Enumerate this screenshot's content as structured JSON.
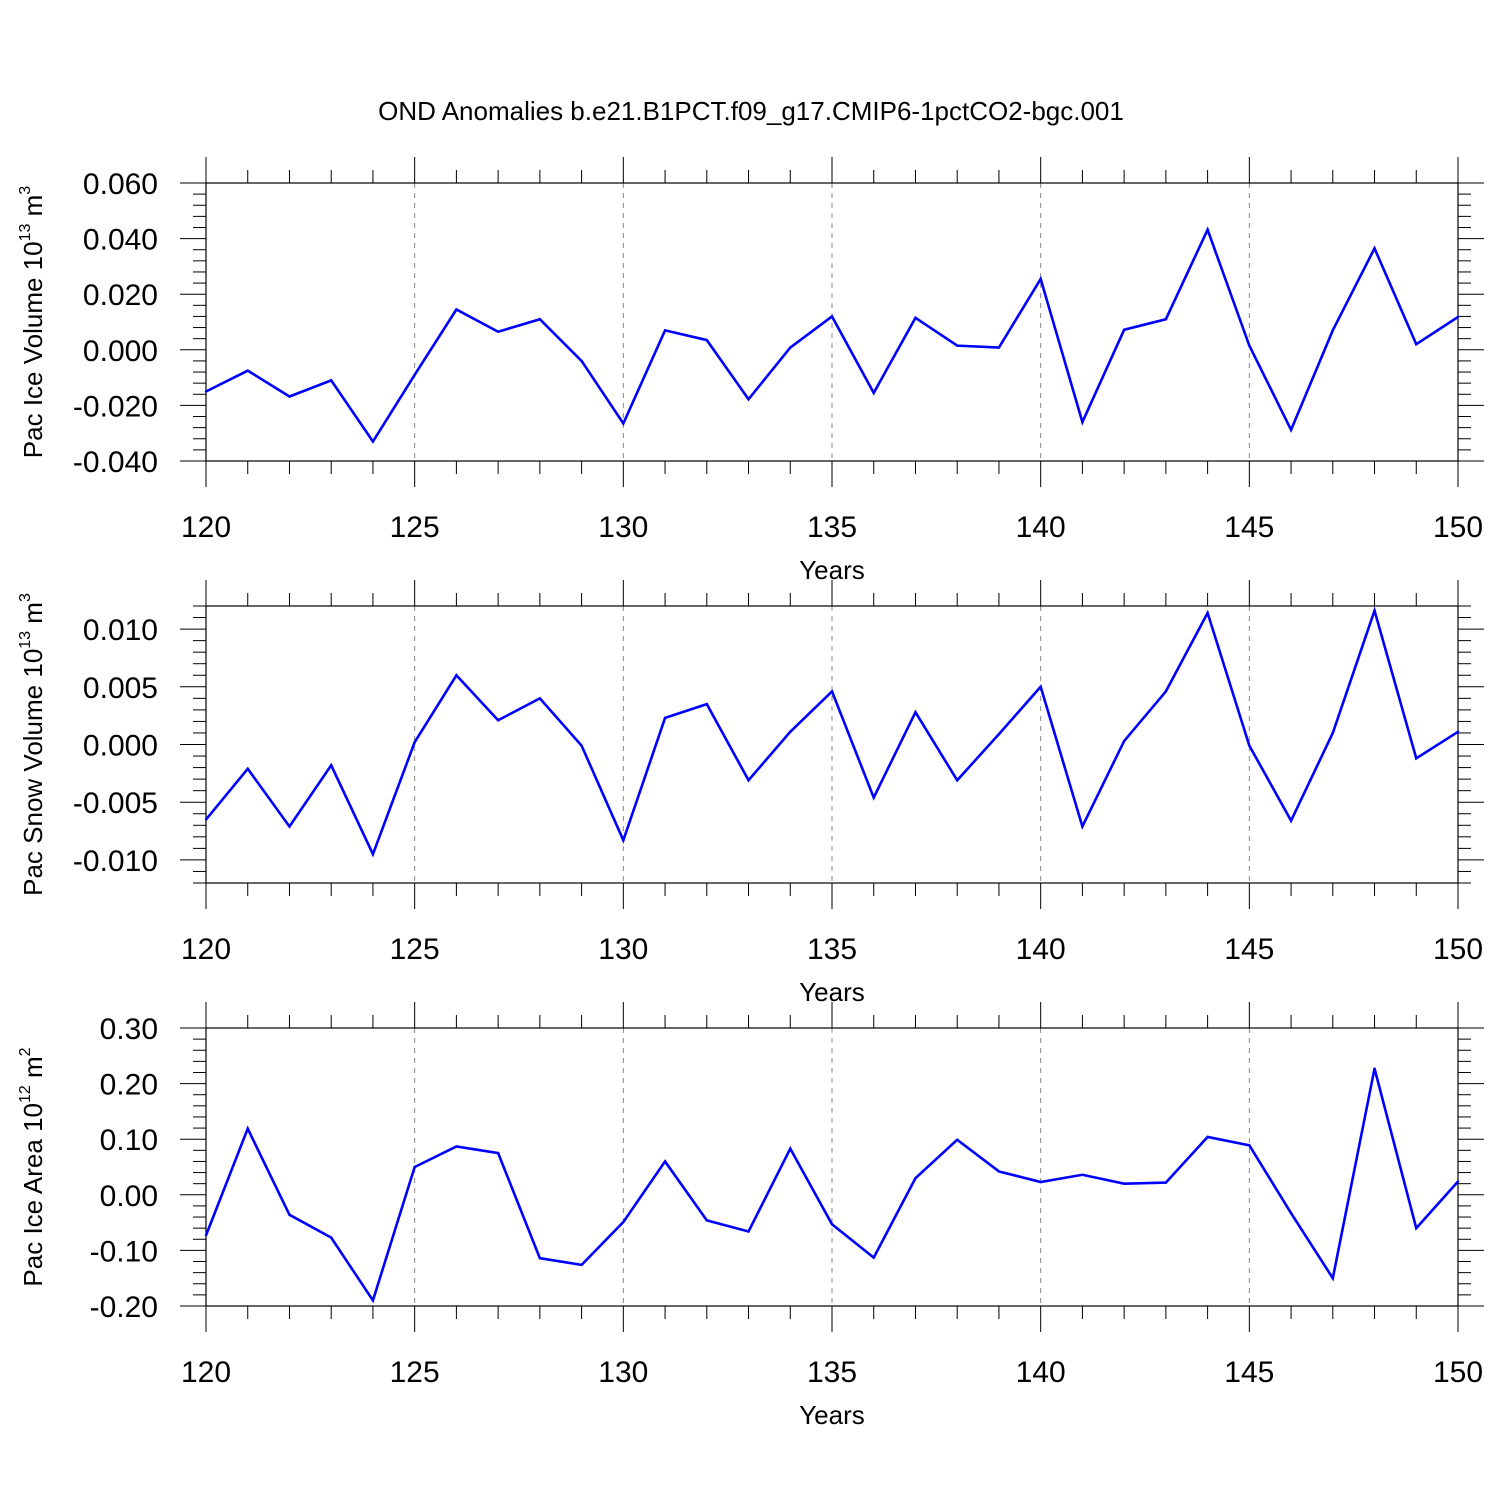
{
  "title": "OND Anomalies b.e21.B1PCT.f09_g17.CMIP6-1pctCO2-bgc.001",
  "colors": {
    "series": "#0000ff",
    "axis": "#000000",
    "grid": "#888888"
  },
  "chart_data": [
    {
      "type": "line",
      "ylabel": {
        "main": "Pac Ice Volume 10",
        "sup": "13",
        "unit": " m",
        "unit_sup": "3"
      },
      "xlabel": "Years",
      "xlim": [
        120,
        150
      ],
      "ylim": [
        -0.04,
        0.06
      ],
      "yticks": [
        -0.04,
        -0.02,
        0.0,
        0.02,
        0.04,
        0.06
      ],
      "ytick_labels": [
        "-0.040",
        "-0.020",
        "0.000",
        "0.020",
        "0.040",
        "0.060"
      ],
      "yminor_step": 0.004,
      "xticks": [
        120,
        125,
        130,
        135,
        140,
        145,
        150
      ],
      "xtick_labels": [
        "120",
        "125",
        "130",
        "135",
        "140",
        "145",
        "150"
      ],
      "vgrid": [
        125,
        130,
        135,
        140,
        145
      ],
      "series": [
        {
          "x": [
            120,
            121,
            122,
            123,
            124,
            125,
            126,
            127,
            128,
            129,
            130,
            131,
            132,
            133,
            134,
            135,
            136,
            137,
            138,
            139,
            140,
            141,
            142,
            143,
            144,
            145,
            146,
            147,
            148,
            149,
            150
          ],
          "values": [
            -0.015,
            -0.0075,
            -0.0168,
            -0.011,
            -0.033,
            -0.009,
            0.0145,
            0.0065,
            0.011,
            -0.004,
            -0.0265,
            0.007,
            0.0035,
            -0.0178,
            0.0008,
            0.012,
            -0.0155,
            0.0115,
            0.0015,
            0.0008,
            0.0255,
            -0.026,
            0.0072,
            0.011,
            0.0432,
            0.0015,
            -0.0288,
            0.007,
            0.0365,
            0.002,
            0.0118
          ]
        }
      ]
    },
    {
      "type": "line",
      "ylabel": {
        "main": "Pac Snow Volume 10",
        "sup": "13",
        "unit": " m",
        "unit_sup": "3"
      },
      "xlabel": "Years",
      "xlim": [
        120,
        150
      ],
      "ylim": [
        -0.012,
        0.012
      ],
      "yticks": [
        -0.01,
        -0.005,
        0.0,
        0.005,
        0.01
      ],
      "ytick_labels": [
        "-0.010",
        "-0.005",
        "0.000",
        "0.005",
        "0.010"
      ],
      "yminor_step": 0.001,
      "xticks": [
        120,
        125,
        130,
        135,
        140,
        145,
        150
      ],
      "xtick_labels": [
        "120",
        "125",
        "130",
        "135",
        "140",
        "145",
        "150"
      ],
      "vgrid": [
        125,
        130,
        135,
        140,
        145
      ],
      "series": [
        {
          "x": [
            120,
            121,
            122,
            123,
            124,
            125,
            126,
            127,
            128,
            129,
            130,
            131,
            132,
            133,
            134,
            135,
            136,
            137,
            138,
            139,
            140,
            141,
            142,
            143,
            144,
            145,
            146,
            147,
            148,
            149,
            150
          ],
          "values": [
            -0.0065,
            -0.0021,
            -0.0071,
            -0.0018,
            -0.0095,
            0.0002,
            0.006,
            0.0021,
            0.004,
            -0.0001,
            -0.0083,
            0.0023,
            0.0035,
            -0.0031,
            0.0011,
            0.0046,
            -0.0046,
            0.0028,
            -0.0031,
            0.0009,
            0.005,
            -0.0071,
            0.0003,
            0.0046,
            0.0114,
            -0.0001,
            -0.0066,
            0.001,
            0.0116,
            -0.0012,
            0.0011
          ]
        }
      ]
    },
    {
      "type": "line",
      "ylabel": {
        "main": "Pac Ice Area 10",
        "sup": "12",
        "unit": " m",
        "unit_sup": "2"
      },
      "xlabel": "Years",
      "xlim": [
        120,
        150
      ],
      "ylim": [
        -0.2,
        0.3
      ],
      "yticks": [
        -0.2,
        -0.1,
        0.0,
        0.1,
        0.2,
        0.3
      ],
      "ytick_labels": [
        "-0.20",
        "-0.10",
        "0.00",
        "0.10",
        "0.20",
        "0.30"
      ],
      "yminor_step": 0.02,
      "xticks": [
        120,
        125,
        130,
        135,
        140,
        145,
        150
      ],
      "xtick_labels": [
        "120",
        "125",
        "130",
        "135",
        "140",
        "145",
        "150"
      ],
      "vgrid": [
        125,
        130,
        135,
        140,
        145
      ],
      "series": [
        {
          "x": [
            120,
            121,
            122,
            123,
            124,
            125,
            126,
            127,
            128,
            129,
            130,
            131,
            132,
            133,
            134,
            135,
            136,
            137,
            138,
            139,
            140,
            141,
            142,
            143,
            144,
            145,
            146,
            147,
            148,
            149,
            150
          ],
          "values": [
            -0.073,
            0.119,
            -0.036,
            -0.077,
            -0.19,
            0.05,
            0.087,
            0.075,
            -0.114,
            -0.126,
            -0.049,
            0.06,
            -0.046,
            -0.066,
            0.083,
            -0.053,
            -0.113,
            0.03,
            0.099,
            0.042,
            0.023,
            0.036,
            0.02,
            0.022,
            0.104,
            0.089,
            -0.033,
            -0.15,
            0.227,
            -0.06,
            0.024
          ]
        }
      ]
    }
  ]
}
